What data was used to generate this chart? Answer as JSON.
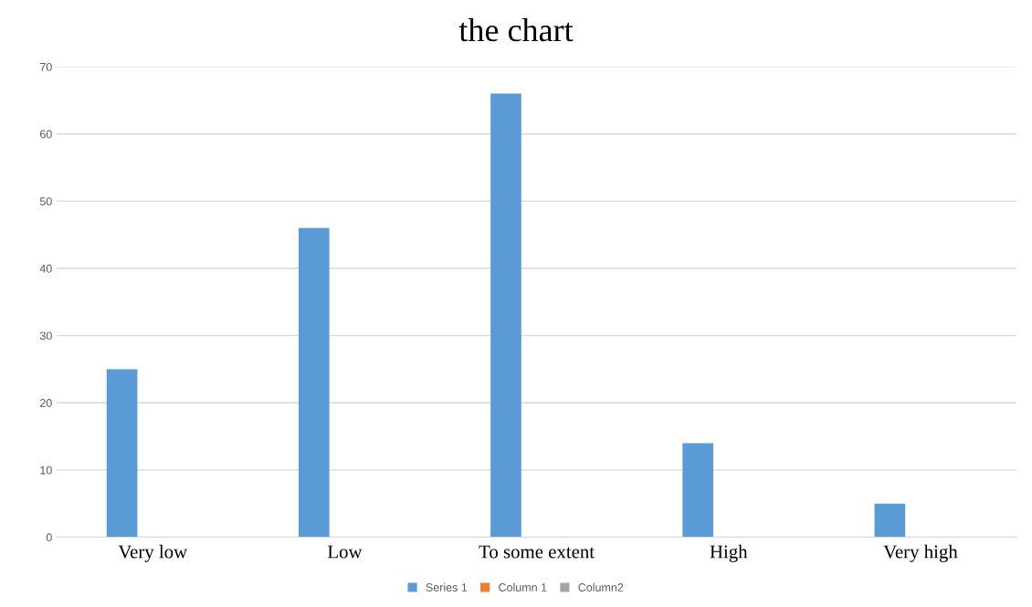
{
  "chart_data": {
    "type": "bar",
    "title": "the chart",
    "categories": [
      "Very low",
      "Low",
      "To some extent",
      "High",
      "Very high"
    ],
    "series": [
      {
        "name": "Series 1",
        "color": "#5b9bd5",
        "values": [
          25,
          46,
          66,
          14,
          5
        ]
      },
      {
        "name": "Column 1",
        "color": "#ed7d31",
        "values": [
          null,
          null,
          null,
          null,
          null
        ]
      },
      {
        "name": "Column2",
        "color": "#a5a5a5",
        "values": [
          null,
          null,
          null,
          null,
          null
        ]
      }
    ],
    "ylim": [
      0,
      70
    ],
    "yticks": [
      0,
      10,
      20,
      30,
      40,
      50,
      60,
      70
    ],
    "grid": "y",
    "legend": "bottom"
  }
}
